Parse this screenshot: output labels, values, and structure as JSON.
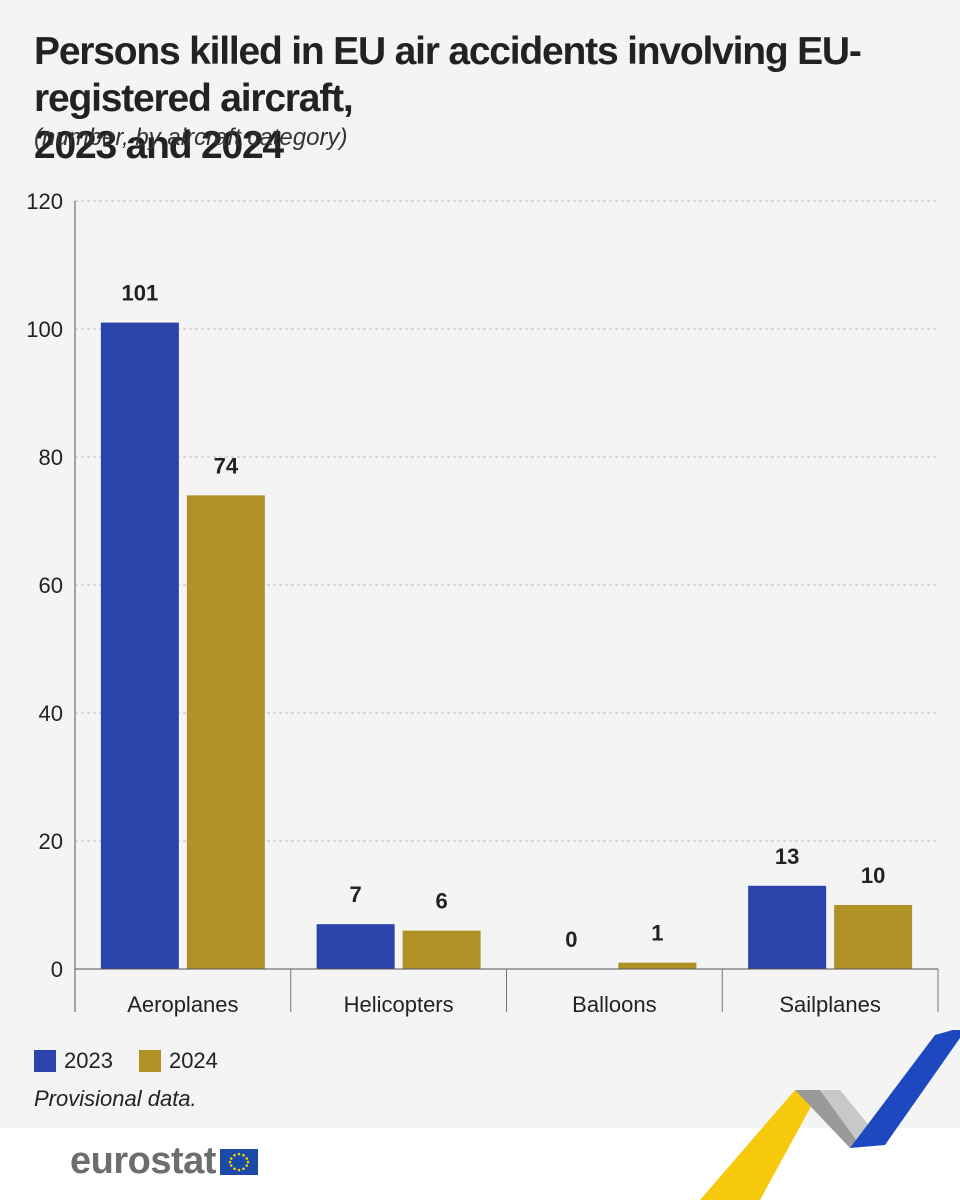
{
  "header": {
    "title_line1": "Persons killed in EU air accidents involving EU-registered aircraft,",
    "title_line2": "2023 and 2024",
    "subtitle": "(number, by aircraft category)"
  },
  "chart_data": {
    "type": "bar",
    "title": "Persons killed in EU air accidents involving EU-registered aircraft, 2023 and 2024",
    "subtitle": "(number, by aircraft category)",
    "categories": [
      "Aeroplanes",
      "Helicopters",
      "Balloons",
      "Sailplanes"
    ],
    "series": [
      {
        "name": "2023",
        "color": "#2a44ab",
        "values": [
          101,
          7,
          0,
          13
        ]
      },
      {
        "name": "2024",
        "color": "#b09126",
        "values": [
          74,
          6,
          1,
          10
        ]
      }
    ],
    "y_ticks": [
      0,
      20,
      40,
      60,
      80,
      100,
      120
    ],
    "ylim": [
      0,
      120
    ],
    "xlabel": "",
    "ylabel": "",
    "grid": "horizontal dashed",
    "legend_position": "bottom-left"
  },
  "legend": {
    "item1": "2023",
    "item2": "2024"
  },
  "note": "Provisional data.",
  "brand": {
    "name": "eurostat",
    "flag_color": "#1b4aa8",
    "star_color": "#f5d200"
  }
}
